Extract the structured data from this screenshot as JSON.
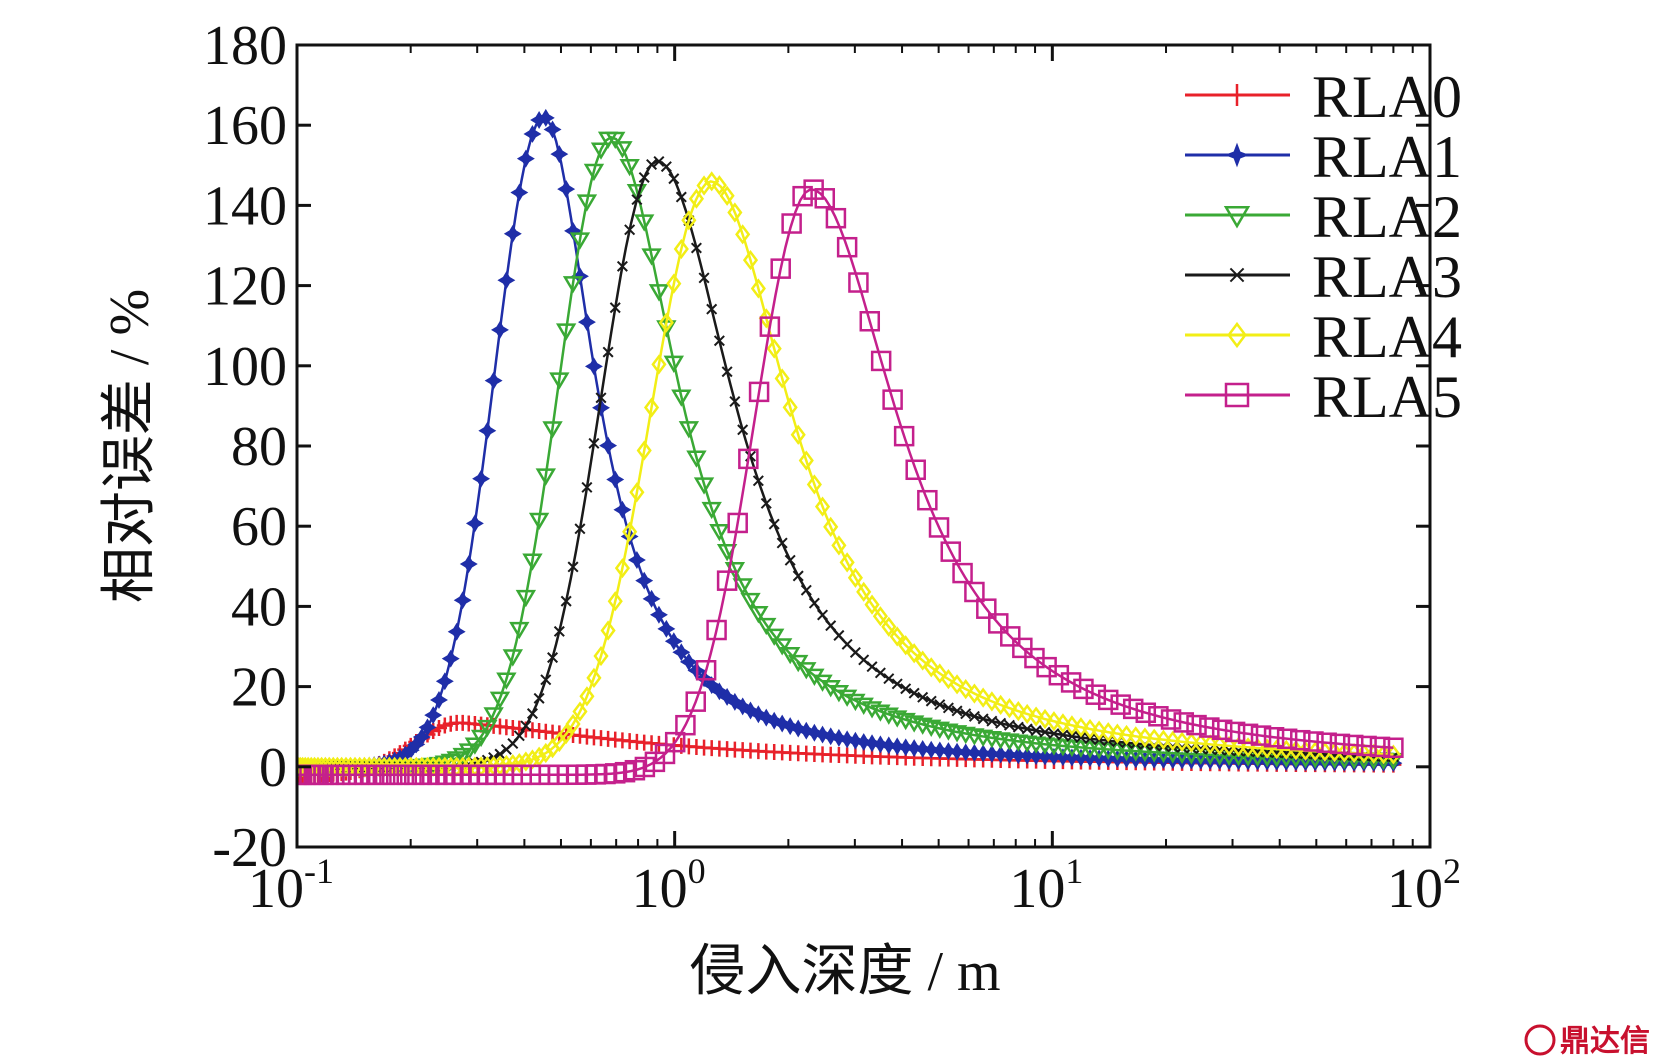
{
  "chart_data": {
    "type": "line",
    "title": "",
    "xlabel": "侵入深度 / m",
    "ylabel": "相对误差 / %",
    "xscale": "log",
    "xlim": [
      0.1,
      100
    ],
    "ylim": [
      -20,
      180
    ],
    "grid": false,
    "legend_position": "top-right",
    "x_ticks": [
      {
        "value": 0.1,
        "base": "10",
        "exp": "-1"
      },
      {
        "value": 1,
        "base": "10",
        "exp": "0"
      },
      {
        "value": 10,
        "base": "10",
        "exp": "1"
      },
      {
        "value": 100,
        "base": "10",
        "exp": "2"
      }
    ],
    "y_ticks": [
      {
        "value": 180,
        "label": "180"
      },
      {
        "value": 160,
        "label": "160"
      },
      {
        "value": 140,
        "label": "140"
      },
      {
        "value": 120,
        "label": "120"
      },
      {
        "value": 100,
        "label": "100"
      },
      {
        "value": 80,
        "label": "80"
      },
      {
        "value": 60,
        "label": "60"
      },
      {
        "value": 40,
        "label": "40"
      },
      {
        "value": 20,
        "label": "20"
      },
      {
        "value": 0,
        "label": "0"
      },
      {
        "value": -20,
        "label": "-20"
      }
    ],
    "series": [
      {
        "name": "RLA0",
        "color": "#e8212a",
        "marker": "plus",
        "peak_x": 0.27,
        "peak_y": 11,
        "width": 0.5,
        "left_width": 0.12,
        "base": -2,
        "start_x": 0.1,
        "end_x": 80,
        "tail": 0.4
      },
      {
        "name": "RLA1",
        "color": "#1f2ea8",
        "marker": "star",
        "peak_x": 0.45,
        "peak_y": 162,
        "width": 0.16,
        "left_width": 0.13,
        "base": 0,
        "start_x": 0.1,
        "end_x": 80,
        "tail": 1.0
      },
      {
        "name": "RLA2",
        "color": "#3aa935",
        "marker": "triangle-down",
        "peak_x": 0.68,
        "peak_y": 157,
        "width": 0.21,
        "left_width": 0.14,
        "base": 0,
        "start_x": 0.1,
        "end_x": 80,
        "tail": 1.0
      },
      {
        "name": "RLA3",
        "color": "#1a1a1a",
        "marker": "x",
        "peak_x": 0.9,
        "peak_y": 151,
        "width": 0.24,
        "left_width": 0.15,
        "base": 0,
        "start_x": 0.1,
        "end_x": 80,
        "tail": 1.0
      },
      {
        "name": "RLA4",
        "color": "#f2ee16",
        "marker": "diamond",
        "peak_x": 1.25,
        "peak_y": 146,
        "width": 0.25,
        "left_width": 0.16,
        "base": 0,
        "start_x": 0.1,
        "end_x": 80,
        "tail": 1.0
      },
      {
        "name": "RLA5",
        "color": "#c4208c",
        "marker": "square",
        "peak_x": 2.3,
        "peak_y": 144,
        "width": 0.27,
        "left_width": 0.15,
        "base": -2,
        "start_x": 0.1,
        "end_x": 80,
        "tail": 1.0
      }
    ]
  },
  "watermark": {
    "text": "鼎达信"
  }
}
